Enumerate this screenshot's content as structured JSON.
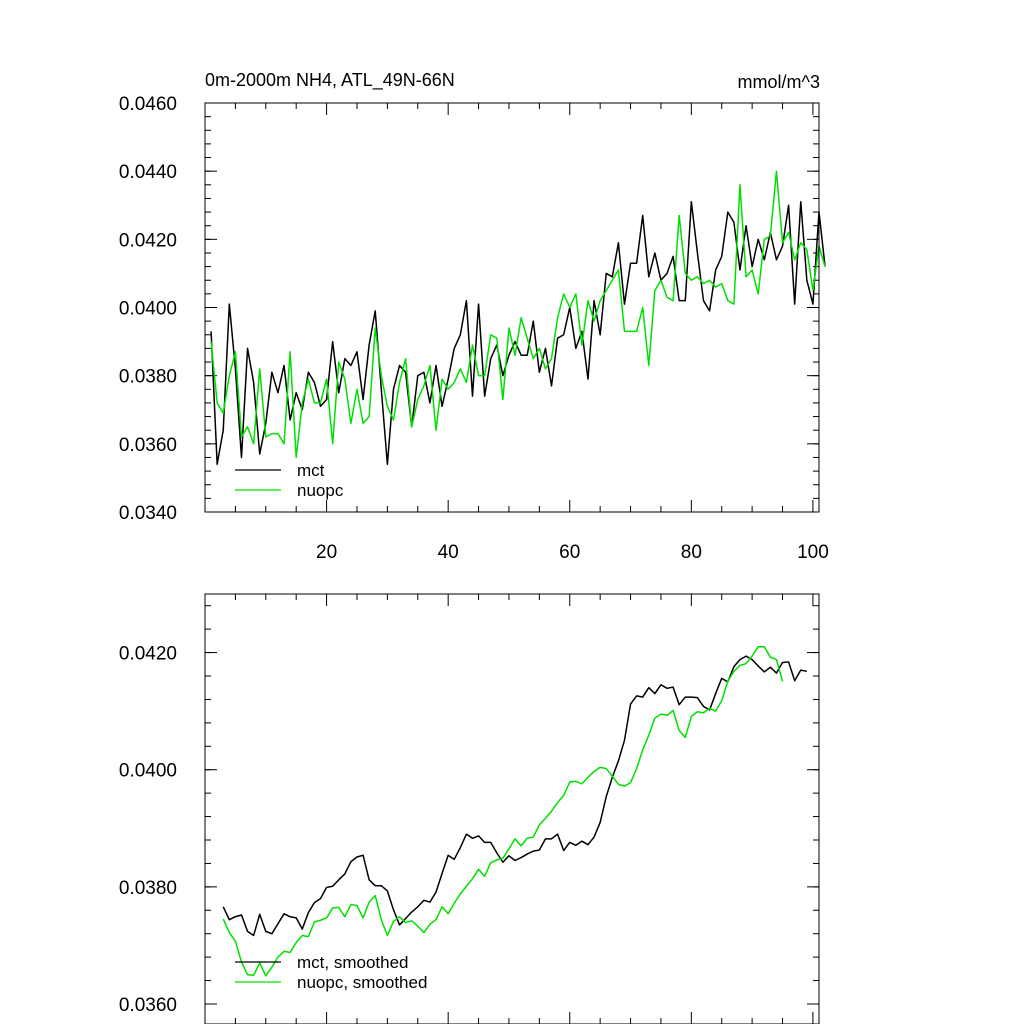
{
  "colors": {
    "mct": "#000000",
    "nuopc": "#00e000",
    "axis": "#000000",
    "background": "#ffffff"
  },
  "chart_data": [
    {
      "type": "line",
      "title": "0m-2000m NH4, ATL_49N-66N",
      "units": "mmol/m^3",
      "xlabel": "",
      "ylabel": "",
      "xlim": [
        0,
        101
      ],
      "ylim": [
        0.034,
        0.046
      ],
      "xticks": [
        "20",
        "40",
        "60",
        "80",
        "100"
      ],
      "yticks": [
        "0.0340",
        "0.0360",
        "0.0380",
        "0.0400",
        "0.0420",
        "0.0440",
        "0.0460"
      ],
      "legend_position": "bottom-left",
      "series": [
        {
          "name": "mct",
          "color": "#000000",
          "values": [
            0.0393,
            0.0354,
            0.0364,
            0.0401,
            0.0382,
            0.0356,
            0.0388,
            0.0378,
            0.0357,
            0.0366,
            0.0381,
            0.0375,
            0.0383,
            0.0367,
            0.0375,
            0.037,
            0.0381,
            0.0378,
            0.0371,
            0.0373,
            0.039,
            0.0375,
            0.0385,
            0.0383,
            0.0387,
            0.0373,
            0.0389,
            0.0399,
            0.0376,
            0.0354,
            0.0376,
            0.0383,
            0.0381,
            0.0365,
            0.038,
            0.0381,
            0.0372,
            0.0383,
            0.0371,
            0.0379,
            0.0388,
            0.0392,
            0.0402,
            0.0374,
            0.0401,
            0.0374,
            0.0385,
            0.0389,
            0.038,
            0.0386,
            0.039,
            0.0386,
            0.0386,
            0.0396,
            0.0381,
            0.0388,
            0.0377,
            0.0391,
            0.0392,
            0.04,
            0.0388,
            0.0393,
            0.0379,
            0.0402,
            0.0392,
            0.041,
            0.0409,
            0.0419,
            0.0401,
            0.0413,
            0.0413,
            0.0427,
            0.0409,
            0.0416,
            0.0408,
            0.041,
            0.0415,
            0.0402,
            0.0402,
            0.0431,
            0.0416,
            0.0402,
            0.0399,
            0.0411,
            0.0415,
            0.0428,
            0.0425,
            0.0411,
            0.0424,
            0.0412,
            0.042,
            0.0414,
            0.0422,
            0.0414,
            0.0418,
            0.043,
            0.0401,
            0.0431,
            0.0408,
            0.0401,
            0.0428,
            0.0412
          ]
        },
        {
          "name": "nuopc",
          "color": "#00e000",
          "values": [
            0.039,
            0.0372,
            0.0369,
            0.038,
            0.0387,
            0.0362,
            0.0365,
            0.036,
            0.0382,
            0.0362,
            0.0363,
            0.0363,
            0.036,
            0.0387,
            0.0356,
            0.0372,
            0.0379,
            0.0372,
            0.0372,
            0.0379,
            0.036,
            0.0384,
            0.0379,
            0.0366,
            0.0376,
            0.0366,
            0.0368,
            0.0394,
            0.038,
            0.0371,
            0.0367,
            0.0378,
            0.0385,
            0.0365,
            0.0373,
            0.0377,
            0.0383,
            0.0364,
            0.0379,
            0.0376,
            0.0378,
            0.0382,
            0.0378,
            0.0389,
            0.038,
            0.038,
            0.0392,
            0.0391,
            0.0373,
            0.0394,
            0.0386,
            0.0397,
            0.0391,
            0.0385,
            0.0388,
            0.0382,
            0.0385,
            0.0397,
            0.0404,
            0.04,
            0.0404,
            0.0389,
            0.0402,
            0.0396,
            0.0402,
            0.0405,
            0.0408,
            0.0411,
            0.0393,
            0.0393,
            0.0393,
            0.04,
            0.0383,
            0.0405,
            0.0408,
            0.0403,
            0.0402,
            0.0427,
            0.041,
            0.0408,
            0.0409,
            0.0407,
            0.0408,
            0.0406,
            0.0407,
            0.0402,
            0.0401,
            0.0436,
            0.0409,
            0.0411,
            0.0404,
            0.042,
            0.0421,
            0.044,
            0.0419,
            0.0422,
            0.0414,
            0.0419,
            0.0417,
            0.0405,
            0.0418,
            0.0412
          ]
        }
      ]
    },
    {
      "type": "line",
      "title": "",
      "xlabel": "",
      "ylabel": "",
      "xlim": [
        0,
        101
      ],
      "ylim": [
        0.036,
        0.043
      ],
      "yticks": [
        "0.0360",
        "0.0380",
        "0.0400",
        "0.0420"
      ],
      "legend_position": "bottom-left",
      "series": [
        {
          "name": "mct, smoothed",
          "color": "#000000",
          "x_start": 3,
          "values": [
            0.03766,
            0.03744,
            0.03749,
            0.03752,
            0.03724,
            0.03717,
            0.03753,
            0.03724,
            0.0372,
            0.03737,
            0.03754,
            0.03749,
            0.03747,
            0.03728,
            0.03756,
            0.03773,
            0.0378,
            0.03799,
            0.03801,
            0.03812,
            0.03822,
            0.03843,
            0.03851,
            0.03854,
            0.03812,
            0.03802,
            0.03802,
            0.03793,
            0.03761,
            0.03735,
            0.03746,
            0.03757,
            0.03766,
            0.03777,
            0.03774,
            0.03791,
            0.03823,
            0.03854,
            0.03847,
            0.03867,
            0.0389,
            0.03883,
            0.03887,
            0.03876,
            0.03876,
            0.03858,
            0.03842,
            0.03853,
            0.03845,
            0.0385,
            0.03856,
            0.03861,
            0.03863,
            0.03882,
            0.03882,
            0.0389,
            0.03862,
            0.03876,
            0.03871,
            0.03878,
            0.03872,
            0.03885,
            0.0391,
            0.03954,
            0.03987,
            0.04015,
            0.0405,
            0.04112,
            0.04126,
            0.04124,
            0.0414,
            0.0413,
            0.04145,
            0.04139,
            0.04141,
            0.04111,
            0.04124,
            0.04124,
            0.04123,
            0.04108,
            0.04102,
            0.0413,
            0.04156,
            0.0415,
            0.04176,
            0.04188,
            0.04194,
            0.04188,
            0.04177,
            0.04167,
            0.04175,
            0.04165,
            0.04183,
            0.04184,
            0.04152,
            0.0417,
            0.04168
          ]
        },
        {
          "name": "nuopc, smoothed",
          "color": "#00e000",
          "x_start": 3,
          "values": [
            0.03745,
            0.03722,
            0.03707,
            0.03672,
            0.0365,
            0.03649,
            0.0367,
            0.03648,
            0.03663,
            0.0368,
            0.0369,
            0.03688,
            0.03705,
            0.03717,
            0.03715,
            0.0374,
            0.03743,
            0.03747,
            0.03764,
            0.03765,
            0.03749,
            0.0377,
            0.03768,
            0.03747,
            0.03774,
            0.03785,
            0.03744,
            0.03717,
            0.03741,
            0.03749,
            0.03739,
            0.03742,
            0.03733,
            0.03722,
            0.03736,
            0.03744,
            0.03766,
            0.03754,
            0.03772,
            0.03788,
            0.03801,
            0.03814,
            0.0383,
            0.03818,
            0.03841,
            0.03846,
            0.03849,
            0.03865,
            0.03882,
            0.0387,
            0.03883,
            0.03885,
            0.03906,
            0.03917,
            0.03929,
            0.03944,
            0.03956,
            0.03979,
            0.0398,
            0.03976,
            0.03987,
            0.03997,
            0.04004,
            0.04002,
            0.03989,
            0.03975,
            0.03972,
            0.03978,
            0.04002,
            0.04034,
            0.04059,
            0.04088,
            0.04095,
            0.04093,
            0.04101,
            0.04067,
            0.04055,
            0.04091,
            0.04099,
            0.04097,
            0.04105,
            0.041,
            0.04118,
            0.04151,
            0.04168,
            0.04178,
            0.04181,
            0.04194,
            0.0421,
            0.0421,
            0.04192,
            0.04188,
            0.04151
          ]
        }
      ]
    }
  ]
}
